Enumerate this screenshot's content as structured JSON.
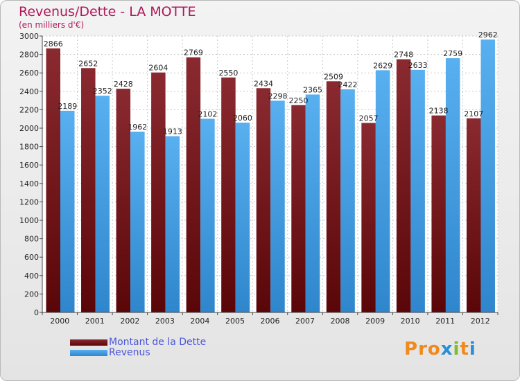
{
  "title": "Revenus/Dette - LA MOTTE",
  "subtitle": "(en milliers d'€)",
  "logo": {
    "text": "Proxiti",
    "letter_colors": [
      "#f08a1c",
      "#f08a1c",
      "#f08a1c",
      "#2a8fd8",
      "#7cbd2a",
      "#f08a1c",
      "#2a8fd8"
    ]
  },
  "colors": {
    "dette": "#7a1a20",
    "revenus": "#4aa0e4"
  },
  "chart_data": {
    "type": "bar",
    "title": "Revenus/Dette - LA MOTTE",
    "categories": [
      "2000",
      "2001",
      "2002",
      "2003",
      "2004",
      "2005",
      "2006",
      "2007",
      "2008",
      "2009",
      "2010",
      "2011",
      "2012"
    ],
    "series": [
      {
        "name": "Montant de la Dette",
        "values": [
          2866,
          2652,
          2428,
          2604,
          2769,
          2550,
          2434,
          2250,
          2509,
          2057,
          2748,
          2138,
          2107
        ]
      },
      {
        "name": "Revenus",
        "values": [
          2189,
          2352,
          1962,
          1913,
          2102,
          2060,
          2298,
          2365,
          2422,
          2629,
          2633,
          2759,
          2962
        ]
      }
    ],
    "ylim": [
      0,
      3000
    ],
    "ytick_step": 200,
    "grid": true,
    "legend_placement": "bottom-left"
  }
}
